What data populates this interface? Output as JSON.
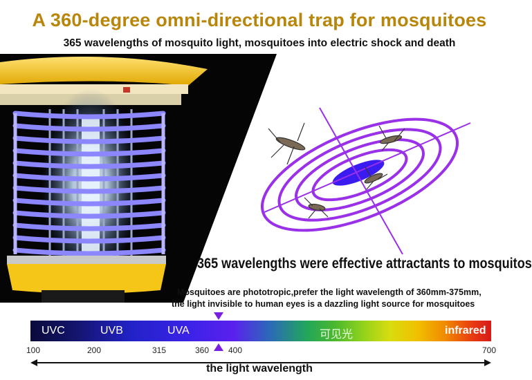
{
  "header": {
    "title": "A 360-degree omni-directional trap for mosquitoes",
    "subtitle": "365 wavelengths of mosquito light, mosquitoes into electric shock and death"
  },
  "captions": {
    "main": "365 wavelengths were effective attractants to mosquitos",
    "line1": "Mosquitoes are phototropic,prefer the light wavelength of 360mm-375mm,",
    "line2": "the light invisible to human eyes is a dazzling light source for mosquitoes"
  },
  "spectrum": {
    "bands": {
      "uvc": "UVC",
      "uvb": "UVB",
      "uva": "UVA",
      "visible": "可见光",
      "infrared": "infrared"
    },
    "ticks": {
      "t100": "100",
      "t200": "200",
      "t315": "315",
      "t360": "360",
      "t400": "400",
      "t700": "700"
    },
    "axis_label": "the light wavelength",
    "marker_value": 365,
    "marker_color": "#7a1fe0"
  },
  "colors": {
    "title": "#b8860b",
    "lamp_yellow": "#f5c518",
    "uv_purple": "#8a2be2"
  }
}
